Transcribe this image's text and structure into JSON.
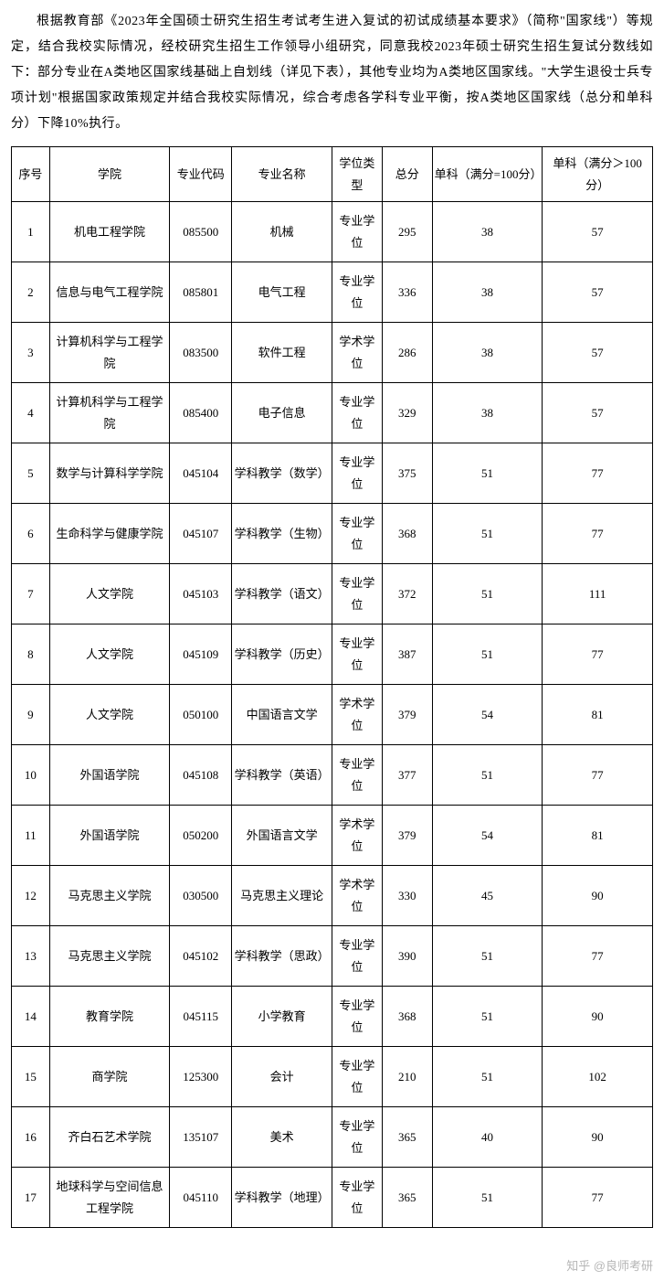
{
  "intro": "根据教育部《2023年全国硕士研究生招生考试考生进入复试的初试成绩基本要求》（简称\"国家线\"）等规定，结合我校实际情况，经校研究生招生工作领导小组研究，同意我校2023年硕士研究生招生复试分数线如下：部分专业在A类地区国家线基础上自划线（详见下表），其他专业均为A类地区国家线。\"大学生退役士兵专项计划\"根据国家政策规定并结合我校实际情况，综合考虑各学科专业平衡，按A类地区国家线（总分和单科分）下降10%执行。",
  "table": {
    "headers": {
      "seq": "序号",
      "college": "学院",
      "code": "专业代码",
      "major": "专业名称",
      "degree": "学位类型",
      "total": "总分",
      "sub1": "单科（满分=100分）",
      "sub2": "单科（满分＞100分）"
    },
    "rows": [
      {
        "seq": "1",
        "college": "机电工程学院",
        "code": "085500",
        "major": "机械",
        "degree": "专业学位",
        "total": "295",
        "sub1": "38",
        "sub2": "57"
      },
      {
        "seq": "2",
        "college": "信息与电气工程学院",
        "code": "085801",
        "major": "电气工程",
        "degree": "专业学位",
        "total": "336",
        "sub1": "38",
        "sub2": "57"
      },
      {
        "seq": "3",
        "college": "计算机科学与工程学院",
        "code": "083500",
        "major": "软件工程",
        "degree": "学术学位",
        "total": "286",
        "sub1": "38",
        "sub2": "57"
      },
      {
        "seq": "4",
        "college": "计算机科学与工程学院",
        "code": "085400",
        "major": "电子信息",
        "degree": "专业学位",
        "total": "329",
        "sub1": "38",
        "sub2": "57"
      },
      {
        "seq": "5",
        "college": "数学与计算科学学院",
        "code": "045104",
        "major": "学科教学（数学）",
        "degree": "专业学位",
        "total": "375",
        "sub1": "51",
        "sub2": "77"
      },
      {
        "seq": "6",
        "college": "生命科学与健康学院",
        "code": "045107",
        "major": "学科教学（生物）",
        "degree": "专业学位",
        "total": "368",
        "sub1": "51",
        "sub2": "77"
      },
      {
        "seq": "7",
        "college": "人文学院",
        "code": "045103",
        "major": "学科教学（语文）",
        "degree": "专业学位",
        "total": "372",
        "sub1": "51",
        "sub2": "111"
      },
      {
        "seq": "8",
        "college": "人文学院",
        "code": "045109",
        "major": "学科教学（历史）",
        "degree": "专业学位",
        "total": "387",
        "sub1": "51",
        "sub2": "77"
      },
      {
        "seq": "9",
        "college": "人文学院",
        "code": "050100",
        "major": "中国语言文学",
        "degree": "学术学位",
        "total": "379",
        "sub1": "54",
        "sub2": "81"
      },
      {
        "seq": "10",
        "college": "外国语学院",
        "code": "045108",
        "major": "学科教学（英语）",
        "degree": "专业学位",
        "total": "377",
        "sub1": "51",
        "sub2": "77"
      },
      {
        "seq": "11",
        "college": "外国语学院",
        "code": "050200",
        "major": "外国语言文学",
        "degree": "学术学位",
        "total": "379",
        "sub1": "54",
        "sub2": "81"
      },
      {
        "seq": "12",
        "college": "马克思主义学院",
        "code": "030500",
        "major": "马克思主义理论",
        "degree": "学术学位",
        "total": "330",
        "sub1": "45",
        "sub2": "90"
      },
      {
        "seq": "13",
        "college": "马克思主义学院",
        "code": "045102",
        "major": "学科教学（思政）",
        "degree": "专业学位",
        "total": "390",
        "sub1": "51",
        "sub2": "77"
      },
      {
        "seq": "14",
        "college": "教育学院",
        "code": "045115",
        "major": "小学教育",
        "degree": "专业学位",
        "total": "368",
        "sub1": "51",
        "sub2": "90"
      },
      {
        "seq": "15",
        "college": "商学院",
        "code": "125300",
        "major": "会计",
        "degree": "专业学位",
        "total": "210",
        "sub1": "51",
        "sub2": "102"
      },
      {
        "seq": "16",
        "college": "齐白石艺术学院",
        "code": "135107",
        "major": "美术",
        "degree": "专业学位",
        "total": "365",
        "sub1": "40",
        "sub2": "90"
      },
      {
        "seq": "17",
        "college": "地球科学与空间信息工程学院",
        "code": "045110",
        "major": "学科教学（地理）",
        "degree": "专业学位",
        "total": "365",
        "sub1": "51",
        "sub2": "77"
      }
    ]
  },
  "watermark": "知乎 @良师考研"
}
